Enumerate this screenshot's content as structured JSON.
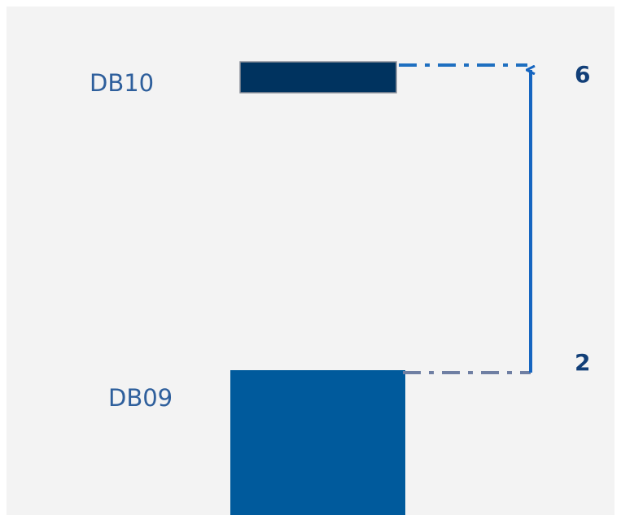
{
  "items": [
    {
      "label": "DB10",
      "value": "6"
    },
    {
      "label": "DB09",
      "value": "2"
    }
  ]
}
